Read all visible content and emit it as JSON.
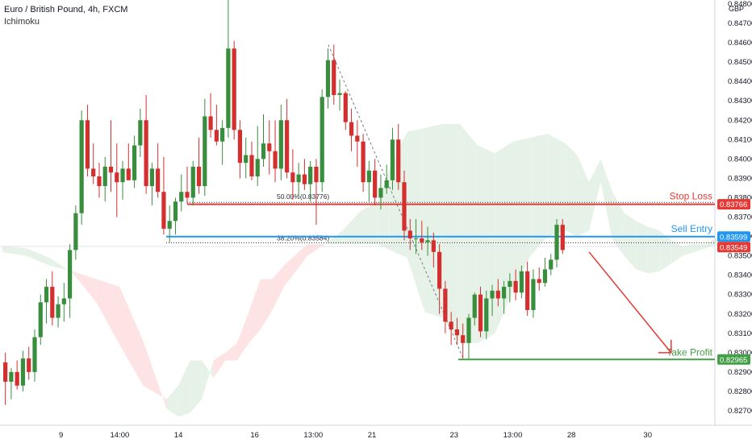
{
  "header": {
    "title": "Euro / British Pound, 4h, FXCM",
    "indicator": "Ichimoku",
    "currency": "GBP"
  },
  "colors": {
    "bull": "#388e3c",
    "bear": "#d32f2f",
    "cloud_bull": "#e6f2e7",
    "cloud_bear": "#fde3e3",
    "stop_loss": "#e53935",
    "sell_entry": "#2196f3",
    "take_profit": "#43a047",
    "arrow": "#e53935"
  },
  "chart_data": {
    "type": "candlestick",
    "symbol": "EURGBP",
    "timeframe": "4h",
    "ylim": [
      0.8265,
      0.8486
    ],
    "y_ticks": [
      "0.84800",
      "0.84700",
      "0.84600",
      "0.84500",
      "0.84400",
      "0.84300",
      "0.84200",
      "0.84100",
      "0.84000",
      "0.83900",
      "0.83800",
      "0.83700",
      "0.83600",
      "0.83500",
      "0.83400",
      "0.83300",
      "0.83200",
      "0.83100",
      "0.83000",
      "0.82900",
      "0.82800",
      "0.82700"
    ],
    "x_ticks": [
      {
        "label": "9",
        "bar": 10
      },
      {
        "label": "14:00",
        "bar": 20
      },
      {
        "label": "14",
        "bar": 30
      },
      {
        "label": "16",
        "bar": 43
      },
      {
        "label": "13:00",
        "bar": 53
      },
      {
        "label": "21",
        "bar": 63
      },
      {
        "label": "23",
        "bar": 77
      },
      {
        "label": "13:00",
        "bar": 87
      },
      {
        "label": "28",
        "bar": 97
      },
      {
        "label": "30",
        "bar": 110
      }
    ],
    "candles": [
      [
        0.8295,
        0.83,
        0.8273,
        0.8285
      ],
      [
        0.8285,
        0.8292,
        0.8276,
        0.829
      ],
      [
        0.829,
        0.8296,
        0.8281,
        0.8283
      ],
      [
        0.8283,
        0.8301,
        0.828,
        0.8297
      ],
      [
        0.8297,
        0.8303,
        0.8286,
        0.829
      ],
      [
        0.829,
        0.8312,
        0.8285,
        0.8308
      ],
      [
        0.8308,
        0.833,
        0.8304,
        0.8326
      ],
      [
        0.8326,
        0.8338,
        0.8315,
        0.8334
      ],
      [
        0.8334,
        0.8342,
        0.8314,
        0.8318
      ],
      [
        0.8318,
        0.8329,
        0.8313,
        0.8325
      ],
      [
        0.8325,
        0.8336,
        0.8316,
        0.8328
      ],
      [
        0.8328,
        0.8356,
        0.8318,
        0.8353
      ],
      [
        0.8353,
        0.8376,
        0.8348,
        0.8372
      ],
      [
        0.8372,
        0.8425,
        0.8366,
        0.842
      ],
      [
        0.842,
        0.8428,
        0.8391,
        0.8395
      ],
      [
        0.8395,
        0.8408,
        0.8387,
        0.8391
      ],
      [
        0.8391,
        0.8398,
        0.838,
        0.8386
      ],
      [
        0.8386,
        0.8401,
        0.8378,
        0.8396
      ],
      [
        0.8396,
        0.842,
        0.8383,
        0.8393
      ],
      [
        0.8393,
        0.8408,
        0.837,
        0.8388
      ],
      [
        0.8388,
        0.8399,
        0.8379,
        0.8395
      ],
      [
        0.8395,
        0.8408,
        0.839,
        0.8389
      ],
      [
        0.8389,
        0.8412,
        0.8385,
        0.8407
      ],
      [
        0.8407,
        0.8426,
        0.8401,
        0.842
      ],
      [
        0.842,
        0.8433,
        0.8382,
        0.8386
      ],
      [
        0.8386,
        0.8398,
        0.8376,
        0.8395
      ],
      [
        0.8395,
        0.8408,
        0.838,
        0.8383
      ],
      [
        0.8383,
        0.8401,
        0.8361,
        0.8364
      ],
      [
        0.8364,
        0.8376,
        0.8357,
        0.8368
      ],
      [
        0.8368,
        0.838,
        0.8361,
        0.8378
      ],
      [
        0.8378,
        0.8392,
        0.8373,
        0.8383
      ],
      [
        0.8383,
        0.8396,
        0.8377,
        0.838
      ],
      [
        0.838,
        0.8399,
        0.8376,
        0.8396
      ],
      [
        0.8396,
        0.8411,
        0.8382,
        0.8386
      ],
      [
        0.8386,
        0.8431,
        0.8381,
        0.8422
      ],
      [
        0.8422,
        0.8434,
        0.8411,
        0.8415
      ],
      [
        0.8415,
        0.8428,
        0.8407,
        0.8409
      ],
      [
        0.8409,
        0.842,
        0.8397,
        0.8416
      ],
      [
        0.8416,
        0.8485,
        0.8411,
        0.8457
      ],
      [
        0.8457,
        0.8461,
        0.841,
        0.8415
      ],
      [
        0.8415,
        0.842,
        0.839,
        0.8398
      ],
      [
        0.8398,
        0.8411,
        0.839,
        0.8402
      ],
      [
        0.8402,
        0.8409,
        0.8389,
        0.8391
      ],
      [
        0.8391,
        0.8417,
        0.8386,
        0.84
      ],
      [
        0.84,
        0.8423,
        0.8396,
        0.8408
      ],
      [
        0.8408,
        0.842,
        0.8392,
        0.8404
      ],
      [
        0.8404,
        0.842,
        0.8388,
        0.8395
      ],
      [
        0.8395,
        0.8428,
        0.8389,
        0.842
      ],
      [
        0.842,
        0.8431,
        0.839,
        0.8393
      ],
      [
        0.8393,
        0.8405,
        0.8379,
        0.8388
      ],
      [
        0.8388,
        0.8398,
        0.8381,
        0.8392
      ],
      [
        0.8392,
        0.84,
        0.8384,
        0.8387
      ],
      [
        0.8387,
        0.8399,
        0.8378,
        0.8396
      ],
      [
        0.8396,
        0.84,
        0.8366,
        0.8388
      ],
      [
        0.8388,
        0.8436,
        0.8383,
        0.8432
      ],
      [
        0.8432,
        0.8457,
        0.8426,
        0.8451
      ],
      [
        0.8451,
        0.8459,
        0.8428,
        0.8433
      ],
      [
        0.8433,
        0.8441,
        0.8425,
        0.8434
      ],
      [
        0.8434,
        0.8435,
        0.8415,
        0.8419
      ],
      [
        0.8419,
        0.8426,
        0.8404,
        0.8412
      ],
      [
        0.8412,
        0.842,
        0.8396,
        0.8409
      ],
      [
        0.8409,
        0.8413,
        0.8383,
        0.8388
      ],
      [
        0.8388,
        0.8399,
        0.8378,
        0.8394
      ],
      [
        0.8394,
        0.84,
        0.8376,
        0.838
      ],
      [
        0.838,
        0.8392,
        0.8374,
        0.8385
      ],
      [
        0.8385,
        0.8397,
        0.8382,
        0.8389
      ],
      [
        0.8389,
        0.8416,
        0.8384,
        0.841
      ],
      [
        0.841,
        0.8418,
        0.8384,
        0.8388
      ],
      [
        0.8388,
        0.8394,
        0.8358,
        0.8363
      ],
      [
        0.8363,
        0.8369,
        0.8353,
        0.8359
      ],
      [
        0.8359,
        0.8369,
        0.8351,
        0.8359
      ],
      [
        0.8359,
        0.8368,
        0.8353,
        0.8357
      ],
      [
        0.8357,
        0.8365,
        0.835,
        0.8358
      ],
      [
        0.8358,
        0.8362,
        0.8344,
        0.8352
      ],
      [
        0.8352,
        0.8356,
        0.832,
        0.8333
      ],
      [
        0.8333,
        0.8337,
        0.831,
        0.8316
      ],
      [
        0.8316,
        0.8321,
        0.8304,
        0.8312
      ],
      [
        0.8312,
        0.8318,
        0.8304,
        0.8309
      ],
      [
        0.8309,
        0.8315,
        0.8297,
        0.8305
      ],
      [
        0.8305,
        0.832,
        0.8297,
        0.8318
      ],
      [
        0.8318,
        0.8331,
        0.8314,
        0.833
      ],
      [
        0.833,
        0.8334,
        0.8308,
        0.8311
      ],
      [
        0.8311,
        0.8332,
        0.8307,
        0.8328
      ],
      [
        0.8328,
        0.8335,
        0.8319,
        0.8332
      ],
      [
        0.8332,
        0.8338,
        0.8324,
        0.8328
      ],
      [
        0.8328,
        0.8337,
        0.832,
        0.8334
      ],
      [
        0.8334,
        0.8341,
        0.8326,
        0.8337
      ],
      [
        0.8337,
        0.8343,
        0.8327,
        0.8331
      ],
      [
        0.8331,
        0.8345,
        0.8328,
        0.8342
      ],
      [
        0.8342,
        0.8347,
        0.8319,
        0.8322
      ],
      [
        0.8322,
        0.8343,
        0.8318,
        0.8338
      ],
      [
        0.8338,
        0.8344,
        0.8332,
        0.8336
      ],
      [
        0.8336,
        0.8349,
        0.8334,
        0.8343
      ],
      [
        0.8343,
        0.8351,
        0.834,
        0.8348
      ],
      [
        0.8348,
        0.8369,
        0.8344,
        0.8366
      ],
      [
        0.8366,
        0.8369,
        0.8351,
        0.8353
      ]
    ],
    "cloud": {
      "x_bars": [
        0,
        4,
        8,
        12,
        16,
        20,
        24,
        28,
        30,
        32,
        34,
        36,
        38,
        40,
        42,
        44,
        46,
        48,
        52,
        55,
        58,
        61,
        64,
        66,
        69,
        72,
        75,
        78,
        81,
        84,
        87,
        90,
        93,
        96,
        98,
        100,
        102,
        104,
        106,
        108,
        110,
        112,
        114,
        116,
        118,
        120,
        122
      ],
      "span_a": [
        0.8355,
        0.8354,
        0.8349,
        0.8341,
        0.8326,
        0.8304,
        0.8283,
        0.8276,
        0.8283,
        0.8296,
        0.8296,
        0.8287,
        0.8296,
        0.8296,
        0.8305,
        0.8312,
        0.8322,
        0.8334,
        0.835,
        0.8356,
        0.8363,
        0.8373,
        0.8378,
        0.8395,
        0.8414,
        0.8416,
        0.8418,
        0.8418,
        0.8407,
        0.8403,
        0.8409,
        0.8411,
        0.8413,
        0.8408,
        0.8402,
        0.8388,
        0.84,
        0.8383,
        0.8372,
        0.8368,
        0.8365,
        0.8363,
        0.8358,
        0.8355,
        0.8356,
        0.8356,
        0.836
      ],
      "span_b": [
        0.8352,
        0.835,
        0.8345,
        0.8342,
        0.8338,
        0.8334,
        0.8306,
        0.8271,
        0.8267,
        0.8269,
        0.8276,
        0.8296,
        0.83,
        0.8305,
        0.8321,
        0.8338,
        0.8338,
        0.8345,
        0.8356,
        0.8356,
        0.8356,
        0.8356,
        0.8356,
        0.8353,
        0.8349,
        0.8321,
        0.8318,
        0.8305,
        0.8305,
        0.831,
        0.8332,
        0.835,
        0.836,
        0.8363,
        0.836,
        0.8363,
        0.8388,
        0.8358,
        0.835,
        0.8343,
        0.8341,
        0.8342,
        0.8346,
        0.835,
        0.8352,
        0.8354,
        0.8356
      ]
    },
    "fib_levels": [
      {
        "label": "50.00%(0.83776)",
        "value": 0.83776
      },
      {
        "label": "38.20%(0.83584)",
        "value": 0.83584
      }
    ],
    "trade_levels": {
      "stop_loss": {
        "label": "Stop Loss",
        "value": 0.83766,
        "tag": "0.83766"
      },
      "sell_entry": {
        "label": "Sell Entry",
        "value": 0.83599,
        "tag": "0.83599"
      },
      "take_profit": {
        "label": "Take Profit",
        "value": 0.82965,
        "tag": "0.82965"
      },
      "current_price_tag": {
        "value": 0.83549,
        "tag": "0.83549"
      }
    },
    "forecast_arrow": {
      "from_bar": 100,
      "from_value": 0.8352,
      "to_bar": 114,
      "to_value": 0.83
    }
  }
}
